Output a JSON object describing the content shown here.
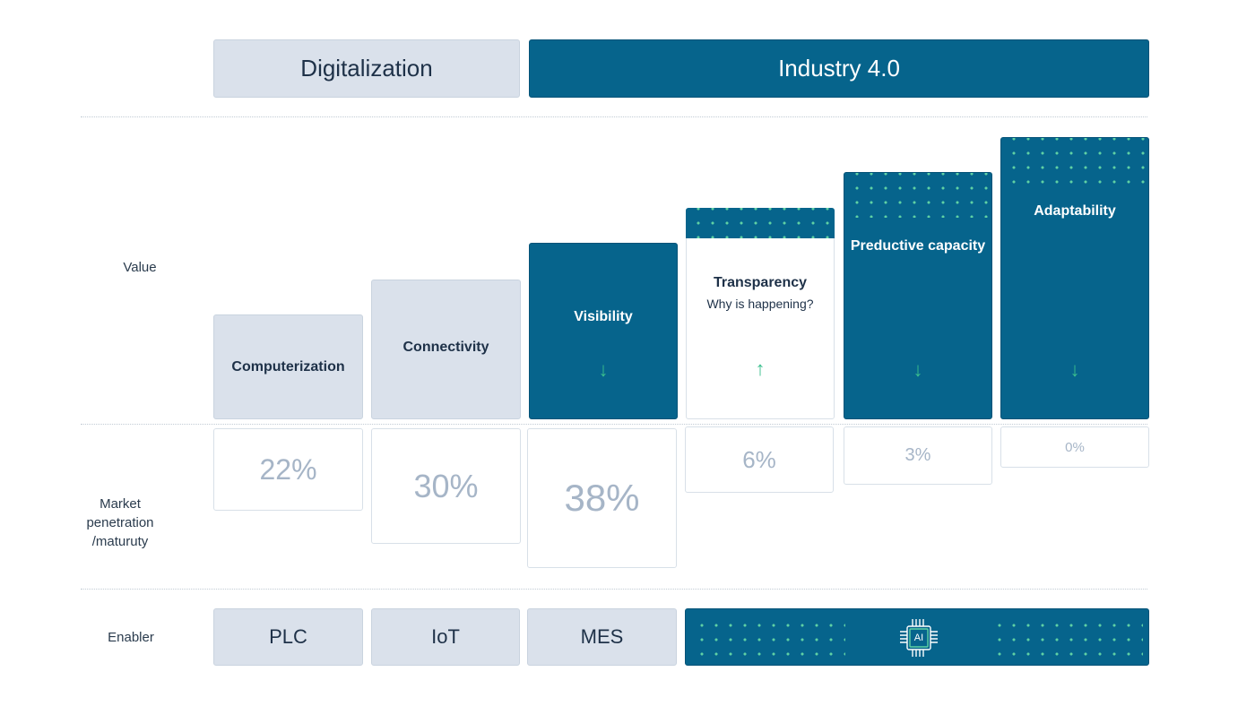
{
  "header": {
    "digitalization": "Digitalization",
    "industry40": "Industry 4.0"
  },
  "rows": {
    "value": "Value",
    "market": "Market\npenetration\n/maturuty",
    "enabler": "Enabler"
  },
  "stages": [
    {
      "label": "Computerization",
      "penetration": "22%"
    },
    {
      "label": "Connectivity",
      "penetration": "30%"
    },
    {
      "label": "Visibility",
      "penetration": "38%"
    },
    {
      "label": "Transparency",
      "sublabel": "Why is happening?",
      "penetration": "6%"
    },
    {
      "label": "Preductive capacity",
      "penetration": "3%"
    },
    {
      "label": "Adaptability",
      "penetration": "0%"
    }
  ],
  "enablers": {
    "plc": "PLC",
    "iot": "IoT",
    "mes": "MES",
    "ai": "AI"
  },
  "icons": {
    "down": "arrow-down-icon",
    "up": "arrow-up-icon",
    "chip": "ai-chip-icon"
  },
  "colors": {
    "dark": "#06648c",
    "light": "#dae1eb",
    "accent": "#3bbf8e",
    "percent": "#a6b5c7"
  }
}
